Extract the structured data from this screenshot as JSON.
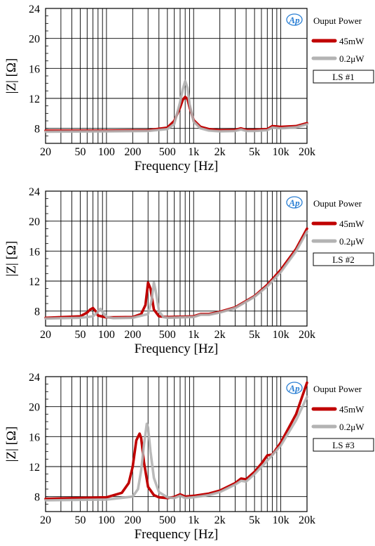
{
  "chart_data": [
    {
      "type": "line",
      "xlabel": "Frequency [Hz]",
      "ylabel": "|Z| [Ω]",
      "x_scale": "log",
      "xlim": [
        20,
        20000
      ],
      "ylim": [
        6,
        24
      ],
      "x_ticks": [
        20,
        50,
        100,
        200,
        500,
        1000,
        2000,
        5000,
        10000,
        20000
      ],
      "x_tick_labels": [
        "20",
        "50",
        "100",
        "200",
        "500",
        "1k",
        "2k",
        "5k",
        "10k",
        "20k"
      ],
      "y_ticks": [
        8,
        12,
        16,
        20,
        24
      ],
      "y_tick_labels": [
        "8",
        "12",
        "16",
        "20",
        "24"
      ],
      "grid": true,
      "legend_title": "Ouput Power",
      "sample_label": "LS #1",
      "logo": "Ap",
      "series": [
        {
          "name": "45mW",
          "color": "#c00000",
          "x": [
            20,
            100,
            300,
            500,
            600,
            700,
            750,
            800,
            850,
            900,
            1000,
            1200,
            1500,
            2000,
            3000,
            3500,
            4000,
            5000,
            7000,
            8000,
            10000,
            15000,
            20000
          ],
          "y": [
            7.7,
            7.7,
            7.75,
            8.1,
            9.0,
            10.8,
            11.8,
            12.2,
            11.9,
            10.8,
            9.1,
            8.2,
            7.9,
            7.75,
            7.8,
            8.0,
            7.8,
            7.8,
            7.9,
            8.3,
            8.2,
            8.3,
            8.7
          ]
        },
        {
          "name": "0.2μW",
          "color": "#b3b3b3",
          "x": [
            20,
            100,
            300,
            500,
            600,
            700,
            750,
            800,
            850,
            900,
            1000,
            1200,
            1500,
            2000,
            3000,
            3500,
            4000,
            5000,
            7000,
            8000,
            10000,
            15000,
            20000
          ],
          "y": [
            7.55,
            7.6,
            7.65,
            7.9,
            8.6,
            11.5,
            13.2,
            14.3,
            13.4,
            11.2,
            8.9,
            8.0,
            7.7,
            7.6,
            7.65,
            7.85,
            7.65,
            7.65,
            7.75,
            8.1,
            8.0,
            8.15,
            8.55
          ]
        }
      ]
    },
    {
      "type": "line",
      "xlabel": "Frequency [Hz]",
      "ylabel": "|Z| [Ω]",
      "x_scale": "log",
      "xlim": [
        20,
        20000
      ],
      "ylim": [
        6,
        24
      ],
      "x_ticks": [
        20,
        50,
        100,
        200,
        500,
        1000,
        2000,
        5000,
        10000,
        20000
      ],
      "x_tick_labels": [
        "20",
        "50",
        "100",
        "200",
        "500",
        "1k",
        "2k",
        "5k",
        "10k",
        "20k"
      ],
      "y_ticks": [
        8,
        12,
        16,
        20,
        24
      ],
      "y_tick_labels": [
        "8",
        "12",
        "16",
        "20",
        "24"
      ],
      "grid": true,
      "legend_title": "Ouput Power",
      "sample_label": "LS #2",
      "logo": "Ap",
      "series": [
        {
          "name": "45mW",
          "color": "#c00000",
          "x": [
            20,
            50,
            60,
            65,
            70,
            75,
            80,
            100,
            200,
            250,
            280,
            300,
            320,
            350,
            400,
            500,
            1000,
            1200,
            1500,
            2000,
            3000,
            5000,
            7000,
            10000,
            15000,
            20000
          ],
          "y": [
            7.1,
            7.3,
            7.8,
            8.2,
            8.4,
            8.0,
            7.4,
            7.15,
            7.2,
            7.6,
            8.8,
            11.8,
            11.0,
            8.2,
            7.3,
            7.2,
            7.3,
            7.6,
            7.6,
            7.9,
            8.5,
            10.0,
            11.5,
            13.5,
            16.3,
            19.0
          ]
        },
        {
          "name": "0.2μW",
          "color": "#b3b3b3",
          "x": [
            20,
            50,
            70,
            80,
            85,
            90,
            100,
            120,
            200,
            300,
            330,
            350,
            370,
            400,
            450,
            500,
            1000,
            1200,
            1500,
            2000,
            3000,
            5000,
            7000,
            10000,
            15000,
            20000
          ],
          "y": [
            7.0,
            7.1,
            7.3,
            7.9,
            8.3,
            7.9,
            7.2,
            7.05,
            7.1,
            7.6,
            9.5,
            11.8,
            10.5,
            8.0,
            7.2,
            7.1,
            7.2,
            7.5,
            7.5,
            7.8,
            8.4,
            9.9,
            11.3,
            13.2,
            16.0,
            18.6
          ]
        }
      ]
    },
    {
      "type": "line",
      "xlabel": "Frequency [Hz]",
      "ylabel": "|Z| [Ω]",
      "x_scale": "log",
      "xlim": [
        20,
        20000
      ],
      "ylim": [
        6,
        24
      ],
      "x_ticks": [
        20,
        50,
        100,
        200,
        500,
        1000,
        2000,
        5000,
        10000,
        20000
      ],
      "x_tick_labels": [
        "20",
        "50",
        "100",
        "200",
        "500",
        "1k",
        "2k",
        "5k",
        "10k",
        "20k"
      ],
      "y_ticks": [
        8,
        12,
        16,
        20,
        24
      ],
      "y_tick_labels": [
        "8",
        "12",
        "16",
        "20",
        "24"
      ],
      "grid": true,
      "legend_title": "Ouput Power",
      "sample_label": "LS #3",
      "logo": "Ap",
      "series": [
        {
          "name": "45mW",
          "color": "#c00000",
          "x": [
            20,
            100,
            150,
            180,
            200,
            220,
            240,
            250,
            270,
            300,
            350,
            400,
            500,
            600,
            700,
            800,
            1000,
            1500,
            2000,
            3000,
            3500,
            4000,
            5000,
            6000,
            7000,
            8000,
            10000,
            15000,
            20000
          ],
          "y": [
            7.7,
            7.9,
            8.5,
            9.8,
            12.0,
            15.5,
            16.4,
            15.8,
            12.5,
            9.3,
            8.2,
            7.9,
            7.8,
            7.95,
            8.3,
            8.0,
            8.1,
            8.4,
            8.8,
            9.8,
            10.4,
            10.3,
            11.3,
            12.4,
            13.5,
            13.6,
            15.2,
            19.0,
            23.2
          ]
        },
        {
          "name": "0.2μW",
          "color": "#b3b3b3",
          "x": [
            20,
            100,
            200,
            230,
            250,
            270,
            290,
            300,
            320,
            350,
            400,
            500,
            600,
            700,
            800,
            1000,
            1500,
            2000,
            3000,
            3500,
            4000,
            5000,
            7000,
            10000,
            15000,
            20000
          ],
          "y": [
            7.5,
            7.6,
            8.0,
            9.0,
            11.5,
            15.0,
            17.7,
            17.2,
            14.0,
            10.5,
            8.6,
            7.9,
            7.8,
            8.1,
            7.8,
            7.9,
            8.2,
            8.6,
            9.6,
            10.1,
            10.0,
            11.0,
            12.8,
            14.8,
            18.2,
            21.3
          ]
        }
      ]
    }
  ]
}
